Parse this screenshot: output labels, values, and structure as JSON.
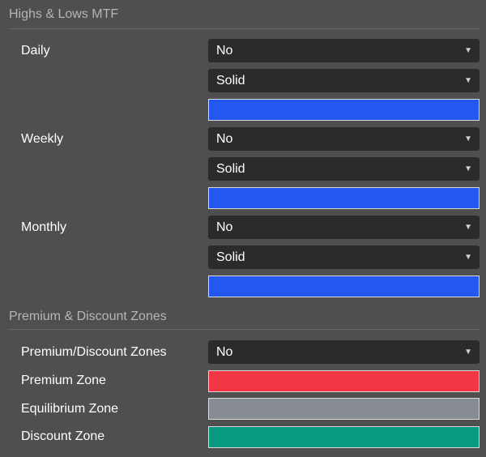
{
  "sections": {
    "mtf": {
      "title": "Highs & Lows MTF",
      "daily": {
        "label": "Daily",
        "show": "No",
        "style": "Solid",
        "color": "#2456f0"
      },
      "weekly": {
        "label": "Weekly",
        "show": "No",
        "style": "Solid",
        "color": "#2456f0"
      },
      "monthly": {
        "label": "Monthly",
        "show": "No",
        "style": "Solid",
        "color": "#2456f0"
      }
    },
    "zones": {
      "title": "Premium & Discount Zones",
      "toggle": {
        "label": "Premium/Discount Zones",
        "value": "No"
      },
      "premium": {
        "label": "Premium Zone",
        "color": "#f23645"
      },
      "equilibrium": {
        "label": "Equilibrium Zone",
        "color": "#878b94"
      },
      "discount": {
        "label": "Discount Zone",
        "color": "#089981"
      }
    }
  },
  "icons": {
    "dropdown": "chevron-down-icon",
    "dropdown_glyph": "▼"
  }
}
